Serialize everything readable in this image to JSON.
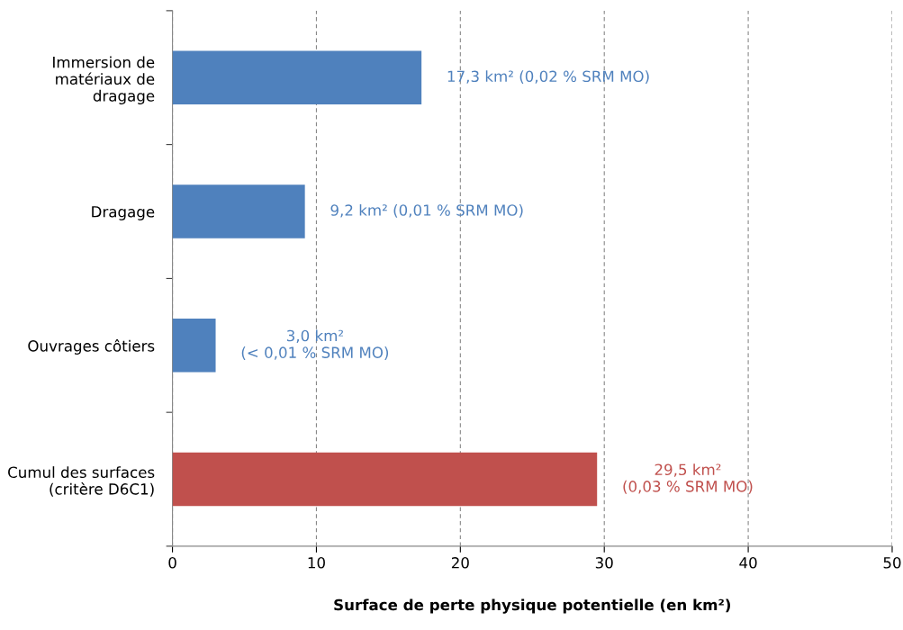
{
  "chart_data": {
    "type": "bar",
    "orientation": "horizontal",
    "xlabel": "Surface de perte physique potentielle (en km²)",
    "categories": [
      "Immersion de\nmatériaux de\ndragage",
      "Dragage",
      "Ouvrages côtiers",
      "Cumul des surfaces\n(critère D6C1)"
    ],
    "values": [
      17.3,
      9.2,
      3.0,
      29.5
    ],
    "colors": [
      "#4f81bd",
      "#4f81bd",
      "#4f81bd",
      "#c0504d"
    ],
    "value_labels": [
      "17,3 km² (0,02 % SRM MO)",
      "9,2 km² (0,01 % SRM MO)",
      "3,0 km²\n(< 0,01 % SRM MO)",
      "29,5 km²\n(0,03 % SRM MO)"
    ],
    "xlim": [
      0,
      50
    ],
    "xticks": [
      0,
      10,
      20,
      30,
      40,
      50
    ],
    "grid": "x",
    "legend": false
  }
}
